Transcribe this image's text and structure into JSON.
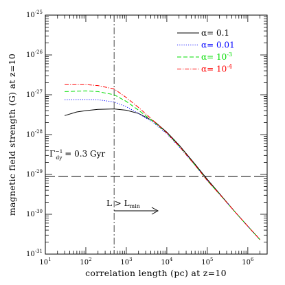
{
  "chart_data": {
    "type": "line",
    "x_scale": "log",
    "y_scale": "log",
    "xlim": [
      10,
      3000000
    ],
    "ylim": [
      1e-31,
      1e-25
    ],
    "xlabel": "correlation length (pc) at z=10",
    "ylabel": "magnetic field strength (G) at z=10",
    "x_ticks": [
      {
        "value": 10,
        "base": "10",
        "exp": "1"
      },
      {
        "value": 100,
        "base": "10",
        "exp": "2"
      },
      {
        "value": 1000,
        "base": "10",
        "exp": "3"
      },
      {
        "value": 10000,
        "base": "10",
        "exp": "4"
      },
      {
        "value": 100000,
        "base": "10",
        "exp": "5"
      },
      {
        "value": 1000000,
        "base": "10",
        "exp": "6"
      }
    ],
    "y_ticks": [
      {
        "value": 1e-31,
        "base": "10",
        "exp": "-31"
      },
      {
        "value": 1e-30,
        "base": "10",
        "exp": "-30"
      },
      {
        "value": 1e-29,
        "base": "10",
        "exp": "-29"
      },
      {
        "value": 1e-28,
        "base": "10",
        "exp": "-28"
      },
      {
        "value": 1e-27,
        "base": "10",
        "exp": "-27"
      },
      {
        "value": 1e-26,
        "base": "10",
        "exp": "-26"
      },
      {
        "value": 1e-25,
        "base": "10",
        "exp": "-25"
      }
    ],
    "grid": false,
    "legend_position": "top-right",
    "series": [
      {
        "name_prefix": "α=",
        "name_base": "0.1",
        "name_exp": "",
        "color": "#000000",
        "dash": "",
        "points": [
          [
            30,
            3e-28
          ],
          [
            60,
            3.7e-28
          ],
          [
            100,
            4e-28
          ],
          [
            200,
            4.3e-28
          ],
          [
            500,
            4.4e-28
          ],
          [
            1000,
            4.1e-28
          ],
          [
            2000,
            3.4e-28
          ],
          [
            5000,
            2.1e-28
          ],
          [
            10000,
            1.15e-28
          ],
          [
            20000,
            5.5e-29
          ],
          [
            50000,
            1.8e-29
          ],
          [
            100000,
            7.5e-30
          ],
          [
            200000,
            3.3e-30
          ],
          [
            500000,
            1.1e-30
          ],
          [
            1000000,
            5e-31
          ],
          [
            2000000,
            2.3e-31
          ]
        ]
      },
      {
        "name_prefix": "α=",
        "name_base": "0.01",
        "name_exp": "",
        "color": "#0000ff",
        "dash": "1.2,2",
        "points": [
          [
            30,
            7.5e-28
          ],
          [
            100,
            7.6e-28
          ],
          [
            200,
            7.5e-28
          ],
          [
            500,
            6.6e-28
          ],
          [
            1000,
            5e-28
          ],
          [
            2000,
            3.4e-28
          ],
          [
            5000,
            1.9e-28
          ],
          [
            10000,
            1.05e-28
          ],
          [
            20000,
            5e-29
          ],
          [
            50000,
            1.7e-29
          ],
          [
            100000,
            7e-30
          ],
          [
            200000,
            3.2e-30
          ],
          [
            500000,
            1.1e-30
          ],
          [
            1000000,
            5e-31
          ],
          [
            2000000,
            2.3e-31
          ]
        ]
      },
      {
        "name_prefix": "α=",
        "name_base": "10",
        "name_exp": "-3",
        "color": "#00dd00",
        "dash": "6,3",
        "points": [
          [
            30,
            1.2e-27
          ],
          [
            100,
            1.25e-27
          ],
          [
            200,
            1.2e-27
          ],
          [
            500,
            1e-27
          ],
          [
            1000,
            6.8e-28
          ],
          [
            2000,
            4.1e-28
          ],
          [
            5000,
            2e-28
          ],
          [
            10000,
            1.1e-28
          ],
          [
            20000,
            5.2e-29
          ],
          [
            50000,
            1.7e-29
          ],
          [
            100000,
            7e-30
          ],
          [
            200000,
            3.2e-30
          ],
          [
            500000,
            1.1e-30
          ],
          [
            1000000,
            5e-31
          ],
          [
            2000000,
            2.3e-31
          ]
        ]
      },
      {
        "name_prefix": "α=",
        "name_base": "10",
        "name_exp": "-4",
        "color": "#ff0000",
        "dash": "6,2,1.2,2",
        "points": [
          [
            30,
            1.8e-27
          ],
          [
            100,
            1.8e-27
          ],
          [
            200,
            1.7e-27
          ],
          [
            500,
            1.4e-27
          ],
          [
            1000,
            8.5e-28
          ],
          [
            2000,
            4.8e-28
          ],
          [
            5000,
            2.1e-28
          ],
          [
            10000,
            1.1e-28
          ],
          [
            20000,
            5.2e-29
          ],
          [
            50000,
            1.7e-29
          ],
          [
            100000,
            7e-30
          ],
          [
            200000,
            3.2e-30
          ],
          [
            500000,
            1.1e-30
          ],
          [
            1000000,
            5e-31
          ],
          [
            2000000,
            2.3e-31
          ]
        ]
      }
    ],
    "reference_lines": [
      {
        "orientation": "horizontal",
        "value": 9e-30,
        "style": "long-dash"
      },
      {
        "orientation": "vertical",
        "value": 500,
        "style": "dash-dot"
      }
    ],
    "annotations": {
      "gamma": {
        "symbol": "Γ",
        "sub": "dy",
        "sup": "−1",
        "text": " = 0.3 Gyr"
      },
      "lmin": {
        "text": "L > L",
        "sub": "min"
      }
    }
  }
}
